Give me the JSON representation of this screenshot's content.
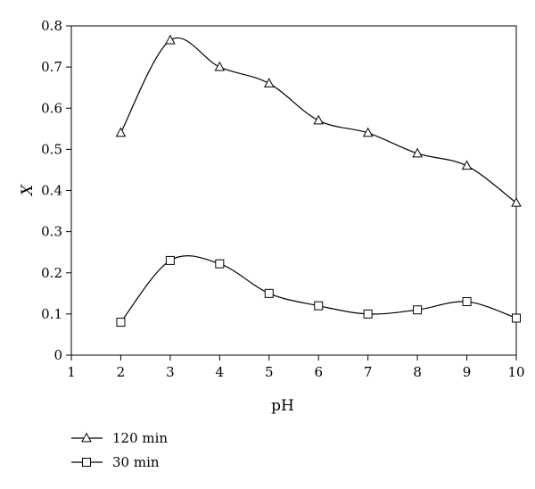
{
  "chart_data": {
    "type": "line",
    "title": "",
    "xlabel": "pH",
    "ylabel": "X",
    "xlim": [
      1,
      10
    ],
    "ylim": [
      0,
      0.8
    ],
    "xticks": [
      "1",
      "2",
      "3",
      "4",
      "5",
      "6",
      "7",
      "8",
      "9",
      "10"
    ],
    "yticks": [
      "0",
      "0.1",
      "0.2",
      "0.3",
      "0.4",
      "0.5",
      "0.6",
      "0.7",
      "0.8"
    ],
    "grid": false,
    "legend_position": "bottom-left",
    "x": [
      2,
      3,
      4,
      5,
      6,
      7,
      8,
      9,
      10
    ],
    "series": [
      {
        "name": "120 min",
        "marker": "triangle",
        "values": [
          0.54,
          0.765,
          0.7,
          0.66,
          0.57,
          0.54,
          0.49,
          0.46,
          0.37
        ]
      },
      {
        "name": "30 min",
        "marker": "square",
        "values": [
          0.08,
          0.23,
          0.222,
          0.15,
          0.12,
          0.1,
          0.11,
          0.13,
          0.09
        ]
      }
    ]
  }
}
